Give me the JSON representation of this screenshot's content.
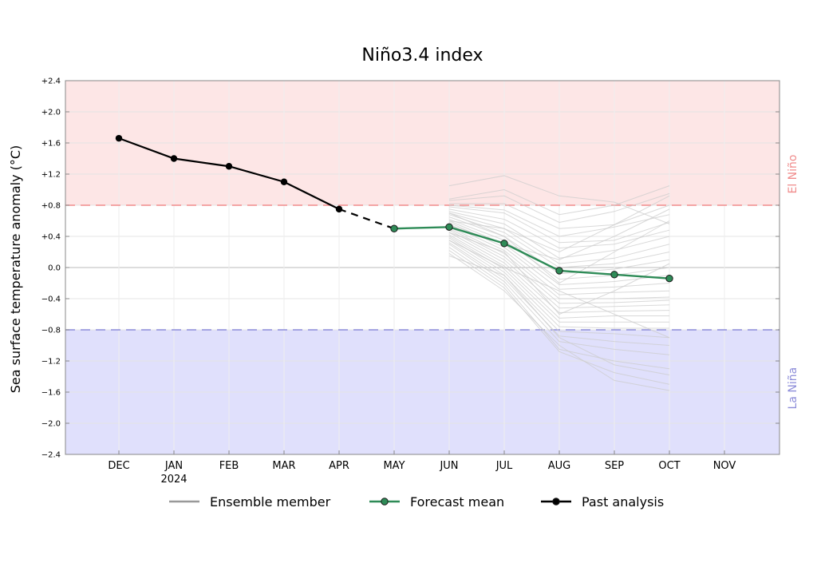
{
  "chart_data": {
    "type": "line",
    "title": "Niño3.4 index",
    "ylabel": "Sea surface temperature anomaly (°C)",
    "ylim": [
      -2.4,
      2.4
    ],
    "yticks": [
      2.4,
      2.0,
      1.6,
      1.2,
      0.8,
      0.4,
      0.0,
      -0.4,
      -0.8,
      -1.2,
      -1.6,
      -2.0,
      -2.4
    ],
    "ytick_labels": [
      "+2.4",
      "+2.0",
      "+1.6",
      "+1.2",
      "+0.8",
      "+0.4",
      "0.0",
      "−0.4",
      "−0.8",
      "−1.2",
      "−1.6",
      "−2.0",
      "−2.4"
    ],
    "categories": [
      "DEC",
      "JAN",
      "FEB",
      "MAR",
      "APR",
      "MAY",
      "JUN",
      "JUL",
      "AUG",
      "SEP",
      "OCT",
      "NOV"
    ],
    "year_label": "2024",
    "thresholds": {
      "el_nino": {
        "value": 0.8,
        "label": "El Niño",
        "color": "#f08c8c",
        "fill": "#fde6e6"
      },
      "la_nina": {
        "value": -0.8,
        "label": "La Niña",
        "color": "#8c8cd9",
        "fill": "#e0e0fc"
      }
    },
    "grid": true,
    "legend_placement": "bottom",
    "series": [
      {
        "name": "Past analysis",
        "color": "#000000",
        "points": [
          {
            "x": "DEC",
            "y": 1.66
          },
          {
            "x": "JAN",
            "y": 1.4
          },
          {
            "x": "FEB",
            "y": 1.3
          },
          {
            "x": "MAR",
            "y": 1.1
          },
          {
            "x": "APR",
            "y": 0.75
          }
        ]
      },
      {
        "name": "Forecast mean",
        "color": "#2e8b57",
        "points": [
          {
            "x": "MAY",
            "y": 0.5
          },
          {
            "x": "JUN",
            "y": 0.52
          },
          {
            "x": "JUL",
            "y": 0.31
          },
          {
            "x": "AUG",
            "y": -0.04
          },
          {
            "x": "SEP",
            "y": -0.09
          },
          {
            "x": "OCT",
            "y": -0.14
          }
        ]
      }
    ],
    "ensemble": {
      "name": "Ensemble member",
      "color": "#aaaaaa",
      "x": [
        "JUN",
        "JUL",
        "AUG",
        "SEP",
        "OCT"
      ],
      "members": [
        [
          1.05,
          1.18,
          0.92,
          0.84,
          0.56
        ],
        [
          0.88,
          1.0,
          0.68,
          0.8,
          1.05
        ],
        [
          0.86,
          0.92,
          0.58,
          0.72,
          0.95
        ],
        [
          0.82,
          0.82,
          0.5,
          0.55,
          0.8
        ],
        [
          0.8,
          0.74,
          0.4,
          0.52,
          0.68
        ],
        [
          0.78,
          0.7,
          0.32,
          0.35,
          0.58
        ],
        [
          0.75,
          0.62,
          0.25,
          0.3,
          0.48
        ],
        [
          0.72,
          0.56,
          0.12,
          0.22,
          0.4
        ],
        [
          0.7,
          0.5,
          0.05,
          0.12,
          0.3
        ],
        [
          0.68,
          0.45,
          0.0,
          0.05,
          0.2
        ],
        [
          0.65,
          0.4,
          -0.08,
          -0.02,
          0.1
        ],
        [
          0.62,
          0.35,
          -0.15,
          -0.1,
          0.0
        ],
        [
          0.6,
          0.3,
          -0.22,
          -0.18,
          -0.1
        ],
        [
          0.58,
          0.26,
          -0.28,
          -0.25,
          -0.2
        ],
        [
          0.55,
          0.22,
          -0.35,
          -0.32,
          -0.3
        ],
        [
          0.52,
          0.18,
          -0.4,
          -0.4,
          -0.38
        ],
        [
          0.5,
          0.14,
          -0.46,
          -0.45,
          -0.42
        ],
        [
          0.48,
          0.1,
          -0.52,
          -0.5,
          -0.48
        ],
        [
          0.45,
          0.06,
          -0.58,
          -0.56,
          -0.55
        ],
        [
          0.42,
          0.02,
          -0.65,
          -0.62,
          -0.62
        ],
        [
          0.4,
          -0.02,
          -0.7,
          -0.7,
          -0.7
        ],
        [
          0.38,
          -0.06,
          -0.76,
          -0.78,
          -0.78
        ],
        [
          0.35,
          -0.1,
          -0.82,
          -0.85,
          -0.9
        ],
        [
          0.32,
          -0.14,
          -0.88,
          -0.95,
          -1.0
        ],
        [
          0.3,
          -0.18,
          -0.95,
          -1.05,
          -1.12
        ],
        [
          0.26,
          -0.22,
          -1.05,
          -1.2,
          -1.3
        ],
        [
          0.22,
          -0.26,
          -1.08,
          -1.35,
          -1.5
        ],
        [
          0.18,
          -0.3,
          -1.0,
          -1.45,
          -1.58
        ],
        [
          0.15,
          -0.1,
          -0.9,
          -1.25,
          -1.38
        ],
        [
          0.55,
          0.3,
          0.1,
          0.4,
          0.75
        ],
        [
          0.6,
          0.5,
          0.2,
          0.55,
          0.92
        ],
        [
          0.7,
          0.4,
          -0.2,
          0.2,
          0.6
        ],
        [
          0.45,
          0.2,
          -0.6,
          -0.3,
          0.05
        ],
        [
          0.35,
          0.0,
          -0.3,
          -0.6,
          -0.9
        ]
      ]
    },
    "legend": [
      "Ensemble member",
      "Forecast mean",
      "Past analysis"
    ]
  }
}
